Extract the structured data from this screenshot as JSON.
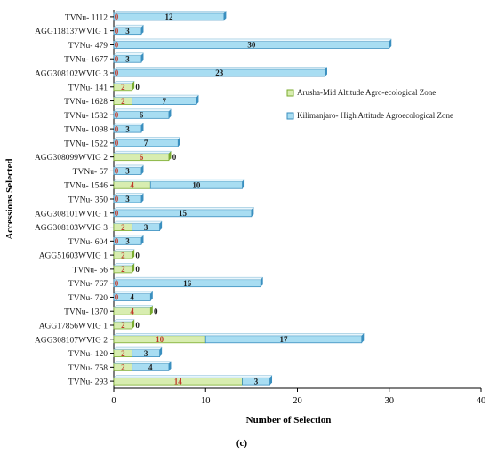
{
  "chart_data": {
    "type": "bar",
    "orientation": "horizontal",
    "stacked": true,
    "panel_label": "(c)",
    "xlabel": "Number of Selection",
    "ylabel": "Accessions Selected",
    "xlim": [
      0,
      40
    ],
    "xticks": [
      0,
      10,
      20,
      30,
      40
    ],
    "grid": false,
    "legend_position": "right",
    "categories": [
      "TVNu- 1112",
      "AGG118137WVIG 1",
      "TVNu- 479",
      "TVNu- 1677",
      "AGG308102WVIG 3",
      "TVNu- 141",
      "TVNu- 1628",
      "TVNu- 1582",
      "TVNu- 1098",
      "TVNu- 1522",
      "AGG308099WVIG 2",
      "TVNu- 57",
      "TVNu- 1546",
      "TVNu- 350",
      "AGG308101WVIG 1",
      "AGG308103WVIG 3",
      "TVNu- 604",
      "AGG51603WVIG 1",
      "TVNu- 56",
      "TVNu- 767",
      "TVNu- 720",
      "TVNu- 1370",
      "AGG17856WVIG 1",
      "AGG308107WVIG 2",
      "TVNu- 120",
      "TVNu- 758",
      "TVNu- 293"
    ],
    "series": [
      {
        "name": "Arusha-Mid Altitude Agro-ecological Zone",
        "color": "#d8edb0",
        "border": "#7aab2e",
        "values": [
          0,
          0,
          0,
          0,
          0,
          2,
          2,
          0,
          0,
          0,
          6,
          0,
          4,
          0,
          0,
          2,
          0,
          2,
          2,
          0,
          0,
          4,
          2,
          10,
          2,
          2,
          14
        ]
      },
      {
        "name": "Kilimanjaro- High Attitude Agroecological Zone",
        "color": "#a8ddf2",
        "border": "#3a8fbf",
        "values": [
          12,
          3,
          30,
          3,
          23,
          0,
          7,
          6,
          3,
          7,
          0,
          3,
          10,
          3,
          15,
          3,
          3,
          0,
          0,
          16,
          4,
          0,
          0,
          17,
          3,
          4,
          3
        ]
      }
    ]
  }
}
